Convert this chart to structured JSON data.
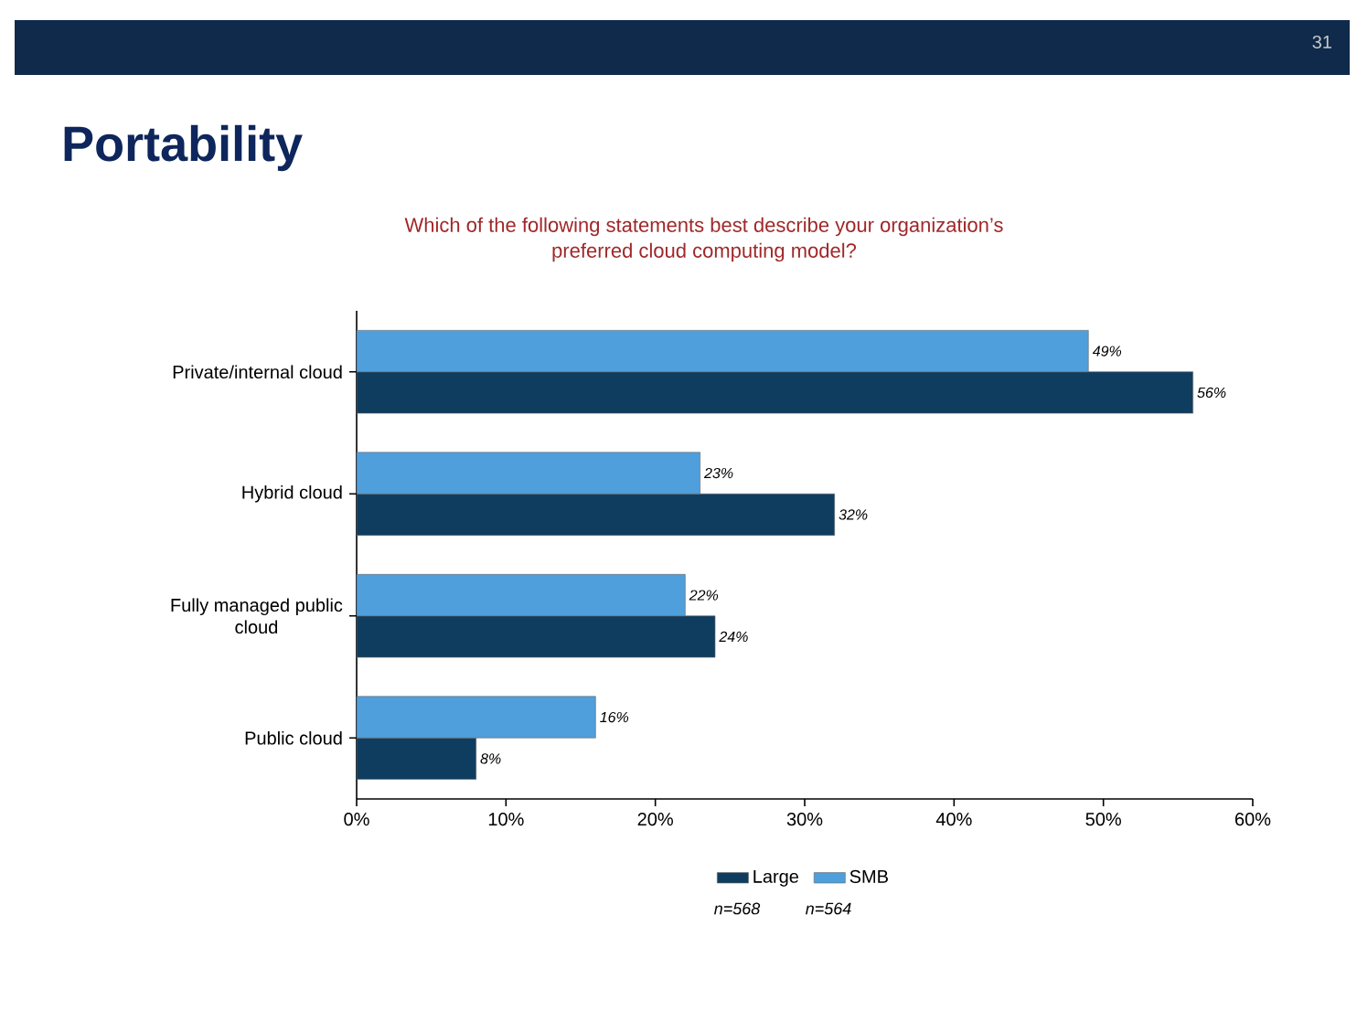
{
  "chart_data": {
    "type": "bar",
    "orientation": "horizontal",
    "title": "Portability",
    "subtitle": "Which of the following statements best describe your organization’s\npreferred cloud computing model?",
    "categories": [
      "Private/internal cloud",
      "Hybrid cloud",
      "Fully managed public\ncloud",
      "Public cloud"
    ],
    "series": [
      {
        "name": "Large",
        "color": "#0f3d5f",
        "values": [
          56,
          32,
          24,
          8
        ],
        "value_labels": [
          "56%",
          "32%",
          "24%",
          "8%"
        ]
      },
      {
        "name": "SMB",
        "color": "#4f9fdc",
        "values": [
          49,
          23,
          22,
          16
        ],
        "value_labels": [
          "49%",
          "23%",
          "22%",
          "16%"
        ]
      }
    ],
    "xlim": [
      0,
      60
    ],
    "xticks": [
      {
        "value": 0,
        "label": "0%"
      },
      {
        "value": 10,
        "label": "10%"
      },
      {
        "value": 20,
        "label": "20%"
      },
      {
        "value": 30,
        "label": "30%"
      },
      {
        "value": 40,
        "label": "40%"
      },
      {
        "value": 50,
        "label": "50%"
      },
      {
        "value": 60,
        "label": "60%"
      }
    ],
    "legend": "bottom",
    "grid": false,
    "annotations": [
      "n=568",
      "n=564",
      "31"
    ]
  }
}
